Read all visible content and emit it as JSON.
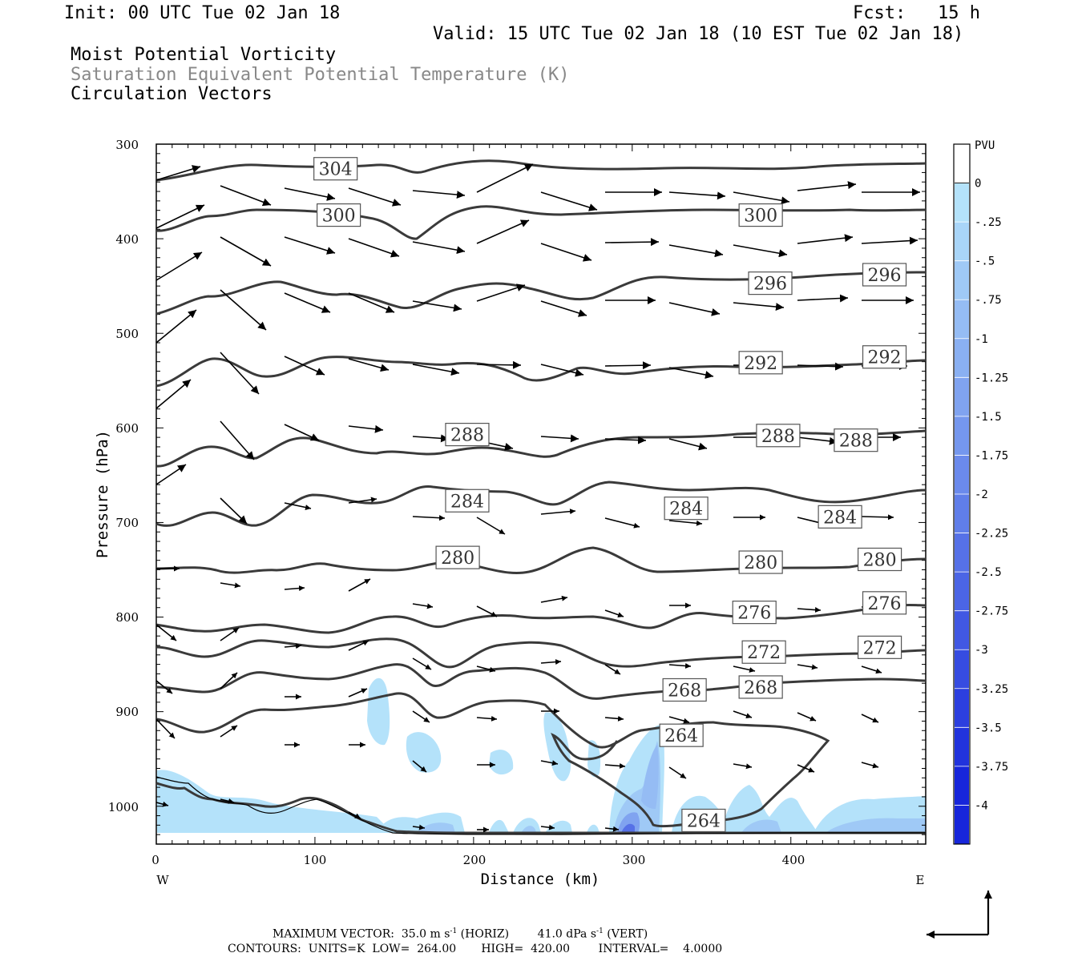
{
  "header": {
    "init": "Init: 00 UTC Tue 02 Jan 18",
    "fcst": "Fcst:   15 h",
    "valid": "Valid: 15 UTC Tue 02 Jan 18 (10 EST Tue 02 Jan 18)",
    "fields": [
      "Moist Potential Vorticity",
      "Saturation Equivalent Potential Temperature (K)",
      "Circulation Vectors"
    ]
  },
  "chart_data": {
    "type": "contour",
    "xlabel": "Distance (km)",
    "ylabel": "Pressure (hPa)",
    "x_ticks": [
      "0",
      "100",
      "200",
      "300",
      "400"
    ],
    "y_ticks": [
      "300",
      "400",
      "500",
      "600",
      "700",
      "800",
      "900",
      "1000"
    ],
    "x_end_labels": {
      "left": "W",
      "right": "E"
    },
    "xlim": [
      0,
      485
    ],
    "ylim": [
      300,
      1040
    ],
    "colorbar": {
      "unit": "PVU",
      "labels": [
        "0",
        "-.25",
        "-.5",
        "-.75",
        "-1",
        "-1.25",
        "-1.5",
        "-1.75",
        "-2",
        "-2.25",
        "-2.5",
        "-2.75",
        "-3",
        "-3.25",
        "-3.5",
        "-3.75",
        "-4"
      ],
      "colors": [
        "#ffffff",
        "#b4e2fa",
        "#a9d5f8",
        "#9fc9f6",
        "#95bcf4",
        "#8ab0f2",
        "#80a3f0",
        "#7597ee",
        "#6b8aec",
        "#607ee9",
        "#5671e7",
        "#4b65e5",
        "#4158e3",
        "#364ce1",
        "#2c3fdf",
        "#2133dd",
        "#1726db"
      ]
    },
    "contour_labels": [
      {
        "text": "304",
        "x": 113,
        "y": 326
      },
      {
        "text": "300",
        "x": 115,
        "y": 375
      },
      {
        "text": "300",
        "x": 381,
        "y": 375
      },
      {
        "text": "296",
        "x": 387,
        "y": 447
      },
      {
        "text": "296",
        "x": 459,
        "y": 438
      },
      {
        "text": "292",
        "x": 381,
        "y": 531
      },
      {
        "text": "292",
        "x": 459,
        "y": 525
      },
      {
        "text": "288",
        "x": 196,
        "y": 607
      },
      {
        "text": "288",
        "x": 392,
        "y": 608
      },
      {
        "text": "288",
        "x": 441,
        "y": 613
      },
      {
        "text": "284",
        "x": 196,
        "y": 677
      },
      {
        "text": "284",
        "x": 334,
        "y": 685
      },
      {
        "text": "284",
        "x": 431,
        "y": 694
      },
      {
        "text": "280",
        "x": 190,
        "y": 737
      },
      {
        "text": "280",
        "x": 381,
        "y": 742
      },
      {
        "text": "280",
        "x": 456,
        "y": 739
      },
      {
        "text": "276",
        "x": 377,
        "y": 795
      },
      {
        "text": "276",
        "x": 459,
        "y": 785
      },
      {
        "text": "272",
        "x": 383,
        "y": 837
      },
      {
        "text": "272",
        "x": 456,
        "y": 832
      },
      {
        "text": "268",
        "x": 333,
        "y": 877
      },
      {
        "text": "268",
        "x": 381,
        "y": 874
      },
      {
        "text": "264",
        "x": 331,
        "y": 925
      },
      {
        "text": "264",
        "x": 345,
        "y": 1015
      }
    ],
    "max_vector": "MAXIMUM VECTOR:  35.0 m s-1 (HORIZ)        41.0 dPa s-1 (VERT)",
    "contours_info": "CONTOURS:  UNITS=K  LOW=  264.00       HIGH=  420.00        INTERVAL=    4.0000"
  },
  "footer": {
    "max_prefix": "MAXIMUM VECTOR:  35.0 m s",
    "sup1": "-1",
    "max_mid": " (HORIZ)        41.0 dPa s",
    "sup2": "-1",
    "max_suffix": " (VERT)",
    "contours": "CONTOURS:  UNITS=K  LOW=  264.00       HIGH=  420.00        INTERVAL=    4.0000"
  }
}
